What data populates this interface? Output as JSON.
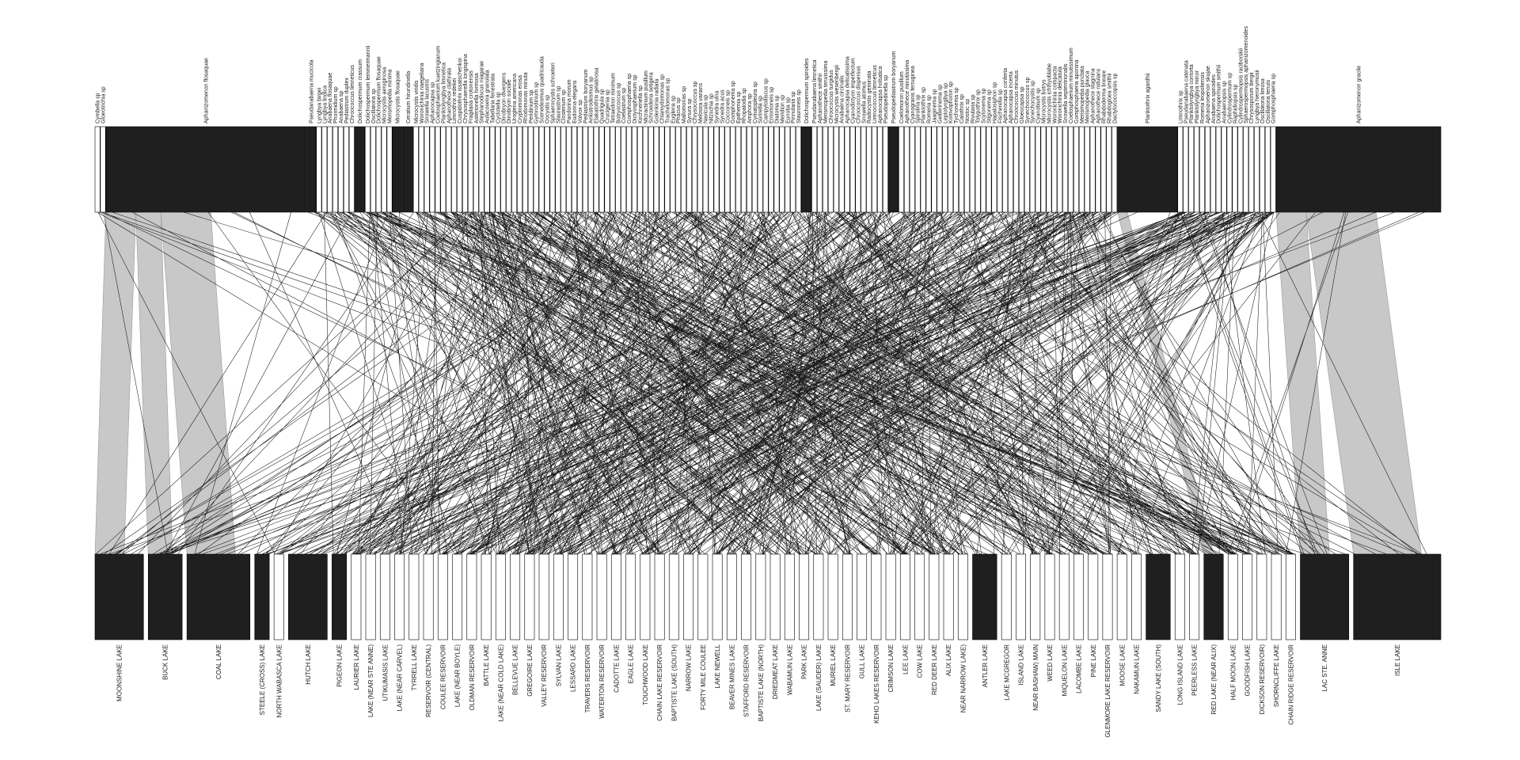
{
  "chart_data": {
    "type": "bipartite",
    "colors": {
      "box_fill": "#1f1f1f",
      "box_empty": "#ffffff",
      "box_stroke": "#000000",
      "band_fill": "#c8c8c8",
      "link_stroke": "#000000",
      "background": "#ffffff"
    },
    "top_nodes": [
      {
        "label": "Cymbella sp",
        "weight": 1
      },
      {
        "label": "Gloeotrichia sp",
        "weight": 1
      },
      {
        "label": "Aphanizomenon flosaquae",
        "weight": 40
      },
      {
        "label": "Pseudanabaena mucicola",
        "weight": 2
      },
      {
        "label": "Lyngbya birgei",
        "weight": 1
      },
      {
        "label": "Lyngbya lindica",
        "weight": 1
      },
      {
        "label": "Anabaena flosaquae",
        "weight": 1
      },
      {
        "label": "Phormidium sp",
        "weight": 1
      },
      {
        "label": "Anabaena sp",
        "weight": 1
      },
      {
        "label": "Pediastrum duplex",
        "weight": 1
      },
      {
        "label": "Chroococcus limneticus",
        "weight": 1
      },
      {
        "label": "Dolichospermum crassum",
        "weight": 2
      },
      {
        "label": "Dolichospermum lemmermannii",
        "weight": 1
      },
      {
        "label": "Oscillatoria sp",
        "weight": 1
      },
      {
        "label": "Dolichospermum flosaquae",
        "weight": 1
      },
      {
        "label": "Microcystis aeruginosa",
        "weight": 1
      },
      {
        "label": "Merismopedia minima",
        "weight": 1
      },
      {
        "label": "Microcystis flosaquae",
        "weight": 2
      },
      {
        "label": "Ceratium hirundinella",
        "weight": 2
      },
      {
        "label": "Microcystis viridis",
        "weight": 1
      },
      {
        "label": "Woronichinia naegeliana",
        "weight": 1
      },
      {
        "label": "Snowella lacustris",
        "weight": 1
      },
      {
        "label": "Aphanocapsa sp",
        "weight": 1
      },
      {
        "label": "Coelosphaerium kuetzingianum",
        "weight": 1
      },
      {
        "label": "Planktolyngbya limnetica",
        "weight": 1
      },
      {
        "label": "Aphanothece clathrata",
        "weight": 1
      },
      {
        "label": "Limnothrix redekei",
        "weight": 1
      },
      {
        "label": "Cuspidothrix issatschenkoi",
        "weight": 1
      },
      {
        "label": "Chrysosphaerella longispina",
        "weight": 1
      },
      {
        "label": "Fragilaria crotonensis",
        "weight": 1
      },
      {
        "label": "Asterionella formosa",
        "weight": 1
      },
      {
        "label": "Stephanodiscus niagarae",
        "weight": 1
      },
      {
        "label": "Aulacoseira granulata",
        "weight": 1
      },
      {
        "label": "Tabellaria fenestrata",
        "weight": 1
      },
      {
        "label": "Cyclotella sp",
        "weight": 1
      },
      {
        "label": "Dinobryon divergens",
        "weight": 1
      },
      {
        "label": "Dinobryon sociale",
        "weight": 1
      },
      {
        "label": "Uroglena americana",
        "weight": 1
      },
      {
        "label": "Cryptomonas erosa",
        "weight": 1
      },
      {
        "label": "Rhodomonas minuta",
        "weight": 1
      },
      {
        "label": "Peridinium sp",
        "weight": 1
      },
      {
        "label": "Gymnodinium sp",
        "weight": 1
      },
      {
        "label": "Scenedesmus quadricauda",
        "weight": 1
      },
      {
        "label": "Oocystis sp",
        "weight": 1
      },
      {
        "label": "Sphaerocystis schroeteri",
        "weight": 1
      },
      {
        "label": "Staurastrum sp",
        "weight": 1
      },
      {
        "label": "Closterium sp",
        "weight": 1
      },
      {
        "label": "Pandorina morum",
        "weight": 1
      },
      {
        "label": "Eudorina elegans",
        "weight": 1
      },
      {
        "label": "Volvox sp",
        "weight": 1
      },
      {
        "label": "Pediastrum boryanum",
        "weight": 1
      },
      {
        "label": "Ankistrodesmus sp",
        "weight": 1
      },
      {
        "label": "Elakatothrix gelatinosa",
        "weight": 1
      },
      {
        "label": "Quadrigula sp",
        "weight": 1
      },
      {
        "label": "Crucigenia sp",
        "weight": 1
      },
      {
        "label": "Tetraedron minimum",
        "weight": 1
      },
      {
        "label": "Botryococcus sp",
        "weight": 1
      },
      {
        "label": "Coelastrum sp",
        "weight": 1
      },
      {
        "label": "Gomphosphaeria sp",
        "weight": 1
      },
      {
        "label": "Dictyosphaerium sp",
        "weight": 1
      },
      {
        "label": "Kirchneriella sp",
        "weight": 1
      },
      {
        "label": "Micractinium pusillum",
        "weight": 1
      },
      {
        "label": "Schroederia setigera",
        "weight": 1
      },
      {
        "label": "Golenkinia radiata",
        "weight": 1
      },
      {
        "label": "Chlamydomonas sp",
        "weight": 1
      },
      {
        "label": "Trachelomonas sp",
        "weight": 1
      },
      {
        "label": "Euglena sp",
        "weight": 1
      },
      {
        "label": "Phacus sp",
        "weight": 1
      },
      {
        "label": "Mallomonas sp",
        "weight": 1
      },
      {
        "label": "Synura sp",
        "weight": 1
      },
      {
        "label": "Chrysococcus sp",
        "weight": 1
      },
      {
        "label": "Melosira varians",
        "weight": 1
      },
      {
        "label": "Navicula sp",
        "weight": 1
      },
      {
        "label": "Nitzschia sp",
        "weight": 1
      },
      {
        "label": "Synedra ulna",
        "weight": 1
      },
      {
        "label": "Synedra acus",
        "weight": 1
      },
      {
        "label": "Cocconeis sp",
        "weight": 1
      },
      {
        "label": "Gomphonema sp",
        "weight": 1
      },
      {
        "label": "Epithemia sp",
        "weight": 1
      },
      {
        "label": "Rhopalodia sp",
        "weight": 1
      },
      {
        "label": "Amphora sp",
        "weight": 1
      },
      {
        "label": "Cymatopleura sp",
        "weight": 1
      },
      {
        "label": "Surirella sp",
        "weight": 1
      },
      {
        "label": "Campylodiscus sp",
        "weight": 1
      },
      {
        "label": "Entomoneis sp",
        "weight": 1
      },
      {
        "label": "Diatoma sp",
        "weight": 1
      },
      {
        "label": "Meridion sp",
        "weight": 1
      },
      {
        "label": "Eunotia sp",
        "weight": 1
      },
      {
        "label": "Pinnularia sp",
        "weight": 1
      },
      {
        "label": "Stauroneis sp",
        "weight": 1
      },
      {
        "label": "Dolichospermum spiroides",
        "weight": 2
      },
      {
        "label": "Pseudanabaena limnetica",
        "weight": 1
      },
      {
        "label": "Aphanothece smithii",
        "weight": 1
      },
      {
        "label": "Merismopedia tenuissima",
        "weight": 1
      },
      {
        "label": "Chroococcus turgidus",
        "weight": 1
      },
      {
        "label": "Microcystis wesenbergii",
        "weight": 1
      },
      {
        "label": "Anabaena circinalis",
        "weight": 1
      },
      {
        "label": "Aphanocapsa delicatissima",
        "weight": 1
      },
      {
        "label": "Cyanodictyon imperfectum",
        "weight": 1
      },
      {
        "label": "Chroococcus dispersus",
        "weight": 1
      },
      {
        "label": "Snowella atomus",
        "weight": 1
      },
      {
        "label": "Radiocystis geminata",
        "weight": 1
      },
      {
        "label": "Limnococcus limneticus",
        "weight": 1
      },
      {
        "label": "Aphanocapsa holsatica",
        "weight": 1
      },
      {
        "label": "Pseudopedinella sp",
        "weight": 1
      },
      {
        "label": "Pseudopediastrum boryanum",
        "weight": 2
      },
      {
        "label": "Coelomoron pusillum",
        "weight": 1
      },
      {
        "label": "Aphanothece minutissima",
        "weight": 1
      },
      {
        "label": "Cyanogranis ferruginea",
        "weight": 1
      },
      {
        "label": "Spirulina sp",
        "weight": 1
      },
      {
        "label": "Planktothrix sp",
        "weight": 1
      },
      {
        "label": "Romeria sp",
        "weight": 1
      },
      {
        "label": "Jaaginema sp",
        "weight": 1
      },
      {
        "label": "Geitlerinema sp",
        "weight": 1
      },
      {
        "label": "Leptolyngbya sp",
        "weight": 1
      },
      {
        "label": "Komvophoron sp",
        "weight": 1
      },
      {
        "label": "Tychonema sp",
        "weight": 1
      },
      {
        "label": "Calothrix sp",
        "weight": 1
      },
      {
        "label": "Nostoc sp",
        "weight": 1
      },
      {
        "label": "Rivularia sp",
        "weight": 1
      },
      {
        "label": "Tolypothrix sp",
        "weight": 1
      },
      {
        "label": "Scytonema sp",
        "weight": 1
      },
      {
        "label": "Stigonema sp",
        "weight": 1
      },
      {
        "label": "Hapalosiphon sp",
        "weight": 1
      },
      {
        "label": "Fischerella sp",
        "weight": 1
      },
      {
        "label": "Aphanocapsa conferta",
        "weight": 1
      },
      {
        "label": "Aphanocapsa incerta",
        "weight": 1
      },
      {
        "label": "Chroococcus minutus",
        "weight": 1
      },
      {
        "label": "Gloeocapsa sp",
        "weight": 1
      },
      {
        "label": "Synechococcus sp",
        "weight": 1
      },
      {
        "label": "Synechocystis sp",
        "weight": 1
      },
      {
        "label": "Cyanobium sp",
        "weight": 1
      },
      {
        "label": "Microcystis botrys",
        "weight": 1
      },
      {
        "label": "Microcystis ichthyoblabe",
        "weight": 1
      },
      {
        "label": "Woronichinia compacta",
        "weight": 1
      },
      {
        "label": "Woronichinia delicatula",
        "weight": 1
      },
      {
        "label": "Snowella septentrionalis",
        "weight": 1
      },
      {
        "label": "Coelosphaerium minutissimum",
        "weight": 1
      },
      {
        "label": "Gomphosphaeria aponina",
        "weight": 1
      },
      {
        "label": "Merismopedia punctata",
        "weight": 1
      },
      {
        "label": "Merismopedia glauca",
        "weight": 1
      },
      {
        "label": "Aphanothece stagnina",
        "weight": 1
      },
      {
        "label": "Aphanothece nidulans",
        "weight": 1
      },
      {
        "label": "Rhabdoderma lineare",
        "weight": 1
      },
      {
        "label": "Rhabdogloea smithii",
        "weight": 1
      },
      {
        "label": "Dactylococcopsis sp",
        "weight": 1
      },
      {
        "label": "Planktothrix agardhii",
        "weight": 12
      },
      {
        "label": "Limnothrix sp",
        "weight": 1
      },
      {
        "label": "Pseudanabaena catenata",
        "weight": 1
      },
      {
        "label": "Planktolyngbya contorta",
        "weight": 1
      },
      {
        "label": "Planktolyngbya minor",
        "weight": 1
      },
      {
        "label": "Romeria leopoliensis",
        "weight": 1
      },
      {
        "label": "Aphanizomenon skujae",
        "weight": 1
      },
      {
        "label": "Anabaena spiroides",
        "weight": 1
      },
      {
        "label": "Dolichospermum smithii",
        "weight": 1
      },
      {
        "label": "Anabaenopsis sp",
        "weight": 1
      },
      {
        "label": "Cylindrospermum sp",
        "weight": 1
      },
      {
        "label": "Raphidiopsis sp",
        "weight": 1
      },
      {
        "label": "Cylindrospermopsis raciborskii",
        "weight": 1
      },
      {
        "label": "Sphaerospermopsis aphanizomenoides",
        "weight": 1
      },
      {
        "label": "Chrysosporum bergii",
        "weight": 1
      },
      {
        "label": "Lyngbya hieronymusii",
        "weight": 1
      },
      {
        "label": "Oscillatoria limosa",
        "weight": 1
      },
      {
        "label": "Oscillatoria tenuis",
        "weight": 1
      },
      {
        "label": "Gomphosphaeria sp",
        "weight": 1
      },
      {
        "label": "Aphanizomenon gracile",
        "weight": 33
      }
    ],
    "bottom_nodes": [
      {
        "label": "MOONSHINE LAKE",
        "weight": 10
      },
      {
        "label": "BUCK LAKE",
        "weight": 7
      },
      {
        "label": "COAL LAKE",
        "weight": 13
      },
      {
        "label": "STEELE (CROSS) LAKE",
        "weight": 3
      },
      {
        "label": "NORTH WABASCA LAKE",
        "weight": 2
      },
      {
        "label": "HUTCH LAKE",
        "weight": 8
      },
      {
        "label": "PIGEON LAKE",
        "weight": 3
      },
      {
        "label": "LAURIER LAKE",
        "weight": 2
      },
      {
        "label": "LAKE (NEAR STE ANNE)",
        "weight": 2
      },
      {
        "label": "UTIKUMASIS LAKE",
        "weight": 2
      },
      {
        "label": "LAKE (NEAR CARVEL)",
        "weight": 2
      },
      {
        "label": "TYRRELL LAKE",
        "weight": 2
      },
      {
        "label": "RESERVOIR (CENTRAL)",
        "weight": 2
      },
      {
        "label": "COULEE RESERVOIR",
        "weight": 2
      },
      {
        "label": "LAKE (NEAR BOYLE)",
        "weight": 2
      },
      {
        "label": "OLDMAN RESERVOIR",
        "weight": 2
      },
      {
        "label": "BATTLE LAKE",
        "weight": 2
      },
      {
        "label": "LAKE (NEAR COLD LAKE)",
        "weight": 2
      },
      {
        "label": "BELLEVUE LAKE",
        "weight": 2
      },
      {
        "label": "GREGOIRE LAKE",
        "weight": 2
      },
      {
        "label": "VALLEY RESERVOIR",
        "weight": 2
      },
      {
        "label": "SYLVAN LAKE",
        "weight": 2
      },
      {
        "label": "LESSARD LAKE",
        "weight": 2
      },
      {
        "label": "TRAVERS RESERVOIR",
        "weight": 2
      },
      {
        "label": "WATERTON RESERVOIR",
        "weight": 2
      },
      {
        "label": "CADOTTE LAKE",
        "weight": 2
      },
      {
        "label": "EAGLE LAKE",
        "weight": 2
      },
      {
        "label": "TOUCHWOOD LAKE",
        "weight": 2
      },
      {
        "label": "CHAIN LAKE RESERVOIR",
        "weight": 2
      },
      {
        "label": "BAPTISTE LAKE (SOUTH)",
        "weight": 2
      },
      {
        "label": "NARROW LAKE",
        "weight": 2
      },
      {
        "label": "FORTY MILE COULEE",
        "weight": 2
      },
      {
        "label": "LAKE NEWELL",
        "weight": 2
      },
      {
        "label": "BEAVER MINES LAKE",
        "weight": 2
      },
      {
        "label": "STAFFORD RESERVOIR",
        "weight": 2
      },
      {
        "label": "BAPTISTE LAKE (NORTH)",
        "weight": 2
      },
      {
        "label": "DRIEDMEAT LAKE",
        "weight": 2
      },
      {
        "label": "WABAMUN LAKE",
        "weight": 2
      },
      {
        "label": "PARK LAKE",
        "weight": 2
      },
      {
        "label": "LAKE (SAUDER) LAKE",
        "weight": 2
      },
      {
        "label": "MURIEL LAKE",
        "weight": 2
      },
      {
        "label": "ST. MARY RESERVOIR",
        "weight": 2
      },
      {
        "label": "GULL LAKE",
        "weight": 2
      },
      {
        "label": "KEHO LAKES RESERVOIR",
        "weight": 2
      },
      {
        "label": "CRIMSON LAKE",
        "weight": 2
      },
      {
        "label": "LEE LAKE",
        "weight": 2
      },
      {
        "label": "COW LAKE",
        "weight": 2
      },
      {
        "label": "RED DEER LAKE",
        "weight": 2
      },
      {
        "label": "ALIX LAKE",
        "weight": 2
      },
      {
        "label": "NEAR NARROW LAKE)",
        "weight": 2
      },
      {
        "label": "ANTLER LAKE",
        "weight": 5
      },
      {
        "label": "LAKE MCGREGOR",
        "weight": 2
      },
      {
        "label": "ISLAND LAKE",
        "weight": 2
      },
      {
        "label": "NEAR BASHAW) MAIN",
        "weight": 2
      },
      {
        "label": "WEED LAKE",
        "weight": 2
      },
      {
        "label": "MIQUELON LAKE",
        "weight": 2
      },
      {
        "label": "LACOMBE LAKE",
        "weight": 2
      },
      {
        "label": "PINE LAKE",
        "weight": 2
      },
      {
        "label": "GLENMORE LAKE RESERVOIR",
        "weight": 2
      },
      {
        "label": "MOOSE LAKE",
        "weight": 2
      },
      {
        "label": "NAKAMUN LAKE",
        "weight": 2
      },
      {
        "label": "SANDY LAKE (SOUTH)",
        "weight": 5
      },
      {
        "label": "LONG ISLAND LAKE",
        "weight": 2
      },
      {
        "label": "PEERLESS LAKE",
        "weight": 2
      },
      {
        "label": "RED LAKE (NEAR ALIX)",
        "weight": 4
      },
      {
        "label": "HALF MOON LAKE",
        "weight": 2
      },
      {
        "label": "GOODFISH LAKE",
        "weight": 2
      },
      {
        "label": "DICKSON RESERVOIR)",
        "weight": 2
      },
      {
        "label": "SHORNCLIFFE LAKE",
        "weight": 2
      },
      {
        "label": "CHAIN RIDGE RESERVOIR",
        "weight": 2
      },
      {
        "label": "LAC STE. ANNE",
        "weight": 10
      },
      {
        "label": "ISLE LAKE",
        "weight": 18
      }
    ],
    "heavy_links": [
      {
        "top": "Aphanizomenon flosaquae",
        "bottom": "MOONSHINE LAKE",
        "value": 6
      },
      {
        "top": "Aphanizomenon flosaquae",
        "bottom": "BUCK LAKE",
        "value": 5
      },
      {
        "top": "Aphanizomenon flosaquae",
        "bottom": "COAL LAKE",
        "value": 10
      },
      {
        "top": "Planktothrix agardhii",
        "bottom": "RED LAKE (NEAR ALIX)",
        "value": 2
      },
      {
        "top": "Aphanizomenon gracile",
        "bottom": "LAC STE. ANNE",
        "value": 6
      },
      {
        "top": "Aphanizomenon gracile",
        "bottom": "ISLE LAKE",
        "value": 14
      }
    ],
    "minor_link_count": 900
  }
}
